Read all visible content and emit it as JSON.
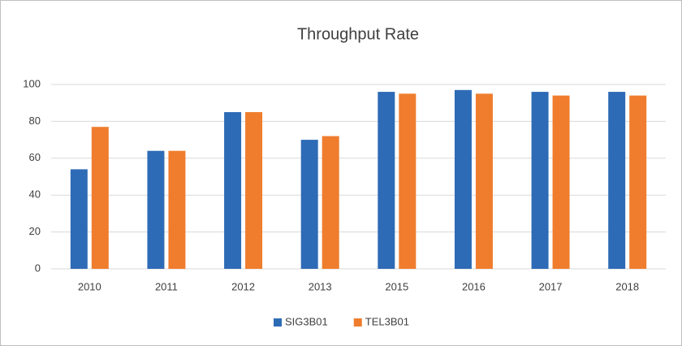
{
  "chart_data": {
    "type": "bar",
    "title": "Throughput Rate",
    "categories": [
      "2010",
      "2011",
      "2012",
      "2013",
      "2015",
      "2016",
      "2017",
      "2018"
    ],
    "series": [
      {
        "name": "SIG3B01",
        "color": "#2e6bb6",
        "values": [
          54,
          64,
          85,
          70,
          96,
          97,
          96,
          96
        ]
      },
      {
        "name": "TEL3B01",
        "color": "#ef7d2d",
        "values": [
          77,
          64,
          85,
          72,
          95,
          95,
          94,
          94
        ]
      }
    ],
    "ylim": [
      0,
      100
    ],
    "yticks": [
      0,
      20,
      40,
      60,
      80,
      100
    ],
    "grid": true,
    "legend": "bottom"
  }
}
